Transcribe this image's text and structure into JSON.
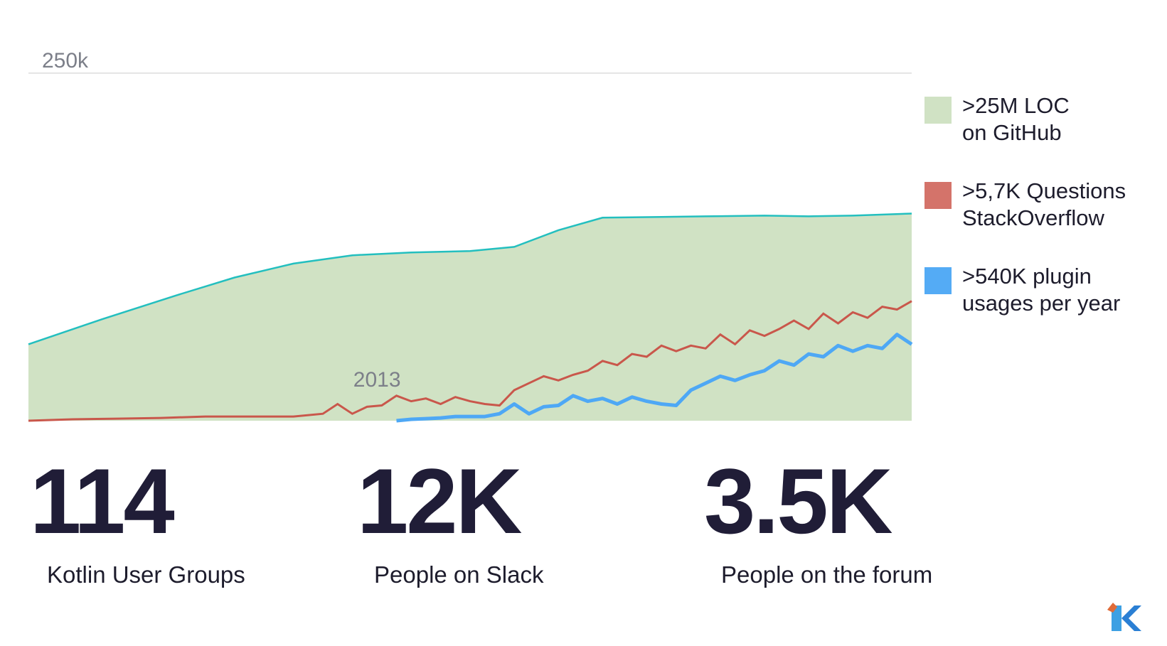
{
  "chart_data": {
    "type": "line",
    "x_range": [
      2011,
      2017
    ],
    "y_range": [
      0,
      300000
    ],
    "annotations": [
      {
        "text": "250k",
        "axis": "y",
        "value": 250000
      },
      {
        "text": "2013",
        "axis": "x",
        "value": 2013.4
      }
    ],
    "series": [
      {
        "name": ">25M LOC on GitHub",
        "kind": "area",
        "fill": "#d0e2c4",
        "stroke": "#23bfbf",
        "x": [
          2011.0,
          2011.5,
          2012.0,
          2012.4,
          2012.8,
          2013.2,
          2013.6,
          2014.0,
          2014.3,
          2014.6,
          2014.9,
          2015.3,
          2015.6,
          2016.0,
          2016.3,
          2016.6,
          2017.0
        ],
        "y": [
          55000,
          73000,
          90000,
          103000,
          113000,
          119000,
          121000,
          122000,
          125000,
          137000,
          146000,
          146500,
          147000,
          147500,
          147000,
          147500,
          149000
        ]
      },
      {
        "name": ">5,7K Questions StackOverflow",
        "kind": "line",
        "stroke": "#c9574b",
        "x": [
          2011.0,
          2011.3,
          2011.6,
          2011.9,
          2012.2,
          2012.5,
          2012.8,
          2013.0,
          2013.1,
          2013.2,
          2013.3,
          2013.4,
          2013.5,
          2013.6,
          2013.7,
          2013.8,
          2013.9,
          2014.0,
          2014.1,
          2014.2,
          2014.3,
          2014.4,
          2014.5,
          2014.6,
          2014.7,
          2014.8,
          2014.9,
          2015.0,
          2015.1,
          2015.2,
          2015.3,
          2015.4,
          2015.5,
          2015.6,
          2015.7,
          2015.8,
          2015.9,
          2016.0,
          2016.1,
          2016.2,
          2016.3,
          2016.4,
          2016.5,
          2016.6,
          2016.7,
          2016.8,
          2016.9,
          2017.0
        ],
        "y": [
          0,
          1000,
          1500,
          2000,
          3000,
          3000,
          3000,
          5000,
          12000,
          5000,
          10000,
          11000,
          18000,
          14000,
          16000,
          12000,
          17000,
          14000,
          12000,
          11000,
          22000,
          27000,
          32000,
          29000,
          33000,
          36000,
          43000,
          40000,
          48000,
          46000,
          54000,
          50000,
          54000,
          52000,
          62000,
          55000,
          65000,
          61000,
          66000,
          72000,
          66000,
          77000,
          70000,
          78000,
          74000,
          82000,
          80000,
          86000
        ]
      },
      {
        "name": ">540K plugin usages per year",
        "kind": "line",
        "stroke": "#4ea8f5",
        "x": [
          2013.5,
          2013.6,
          2013.7,
          2013.8,
          2013.9,
          2014.0,
          2014.1,
          2014.2,
          2014.3,
          2014.4,
          2014.5,
          2014.6,
          2014.7,
          2014.8,
          2014.9,
          2015.0,
          2015.1,
          2015.2,
          2015.3,
          2015.4,
          2015.5,
          2015.6,
          2015.7,
          2015.8,
          2015.9,
          2016.0,
          2016.1,
          2016.2,
          2016.3,
          2016.4,
          2016.5,
          2016.6,
          2016.7,
          2016.8,
          2016.9,
          2017.0
        ],
        "y": [
          0,
          1000,
          1500,
          2000,
          3000,
          3000,
          3000,
          5000,
          12000,
          5000,
          10000,
          11000,
          18000,
          14000,
          16000,
          12000,
          17000,
          14000,
          12000,
          11000,
          22000,
          27000,
          32000,
          29000,
          33000,
          36000,
          43000,
          40000,
          48000,
          46000,
          54000,
          50000,
          54000,
          52000,
          62000,
          55000
        ]
      }
    ]
  },
  "legend": [
    {
      "line1": ">25M LOC",
      "line2": "on GitHub",
      "color": "#d0e2c4"
    },
    {
      "line1": ">5,7K Questions",
      "line2": "StackOverflow",
      "color": "#d4736a"
    },
    {
      "line1": ">540K plugin",
      "line2": "usages per year",
      "color": "#54abf5"
    }
  ],
  "stats": [
    {
      "value": "114",
      "label": "Kotlin User Groups"
    },
    {
      "value": "12K",
      "label": "People on Slack"
    },
    {
      "value": "3.5K",
      "label": "People on the forum"
    }
  ],
  "logo": {
    "icon": "kotlin-logo-icon",
    "colors": [
      "#3da0e3",
      "#e06b38",
      "#2a7fd4"
    ]
  }
}
